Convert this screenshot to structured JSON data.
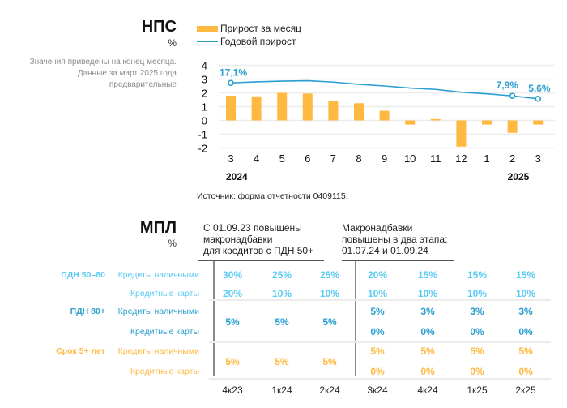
{
  "nps": {
    "title": "НПС",
    "unit": "%",
    "note_lines": [
      "Значения приведены на конец месяца.",
      "Данные за март 2025 года",
      "предварительные"
    ],
    "legend": {
      "bars": "Прирост за месяц",
      "line": "Годовой прирост"
    },
    "source": "Источник: форма отчетности 0409115.",
    "colors": {
      "bar": "#FFB940",
      "line": "#2A9FD0",
      "grid": "#ececec"
    }
  },
  "chart_data": {
    "type": "bar",
    "title": "НПС",
    "ylabel": "%",
    "xlabel": "",
    "ylim": [
      -2,
      4
    ],
    "yticks": [
      "4",
      "3",
      "2",
      "1",
      "0",
      "-1",
      "-2"
    ],
    "grid": true,
    "legend_position": "top-left",
    "categories": [
      "3",
      "4",
      "5",
      "6",
      "7",
      "8",
      "9",
      "10",
      "11",
      "12",
      "1",
      "2",
      "3"
    ],
    "year_labels": [
      {
        "label": "2024",
        "at_index": 0
      },
      {
        "label": "2025",
        "at_index": 11
      }
    ],
    "series": [
      {
        "name": "Прирост за месяц",
        "type": "bar",
        "values": [
          1.8,
          1.75,
          2.0,
          1.95,
          1.4,
          1.25,
          0.7,
          -0.3,
          0.1,
          -1.9,
          -0.3,
          -0.9,
          -0.3
        ]
      },
      {
        "name": "Годовой прирост",
        "type": "line",
        "values": [
          2.72,
          2.8,
          2.85,
          2.88,
          2.78,
          2.62,
          2.5,
          2.35,
          2.25,
          2.05,
          1.93,
          1.78,
          1.57
        ],
        "annotations": [
          {
            "index": 0,
            "label": "17,1%"
          },
          {
            "index": 11,
            "label": "7,9%"
          },
          {
            "index": 12,
            "label": "5,6%"
          }
        ]
      }
    ]
  },
  "mpl": {
    "title": "МПЛ",
    "unit": "%",
    "header1": [
      "С 01.09.23 повышены",
      "макронадбавки",
      "для кредитов с ПДН 50+"
    ],
    "header2": [
      "Макронадбавки",
      "повышены в два этапа:",
      "01.07.24 и 01.09.24"
    ],
    "quarters": [
      "4к23",
      "1к24",
      "2к24",
      "3к24",
      "4к24",
      "1к25",
      "2к25"
    ],
    "groups": [
      {
        "label": "ПДН 50–80",
        "color": "#5ACBF3",
        "rows": [
          {
            "label": "Кредиты наличными",
            "values": [
              "30%",
              "25%",
              "25%",
              "20%",
              "15%",
              "15%",
              "15%"
            ]
          },
          {
            "label": "Кредитные карты",
            "values": [
              "20%",
              "10%",
              "10%",
              "10%",
              "10%",
              "10%",
              "10%"
            ]
          }
        ]
      },
      {
        "label": "ПДН 80+",
        "color": "#2A9FD0",
        "merged": "5%",
        "rows": [
          {
            "label": "Кредиты наличными",
            "values": [
              "5%",
              "3%",
              "3%",
              "3%"
            ]
          },
          {
            "label": "Кредитные карты",
            "values": [
              "0%",
              "0%",
              "0%",
              "0%"
            ]
          }
        ]
      },
      {
        "label": "Срок 5+ лет",
        "color": "#FFB940",
        "merged": "5%",
        "rows": [
          {
            "label": "Кредиты наличными",
            "values": [
              "5%",
              "5%",
              "5%",
              "5%"
            ]
          },
          {
            "label": "Кредитные карты",
            "values": [
              "0%",
              "0%",
              "0%",
              "0%"
            ]
          }
        ]
      }
    ]
  }
}
